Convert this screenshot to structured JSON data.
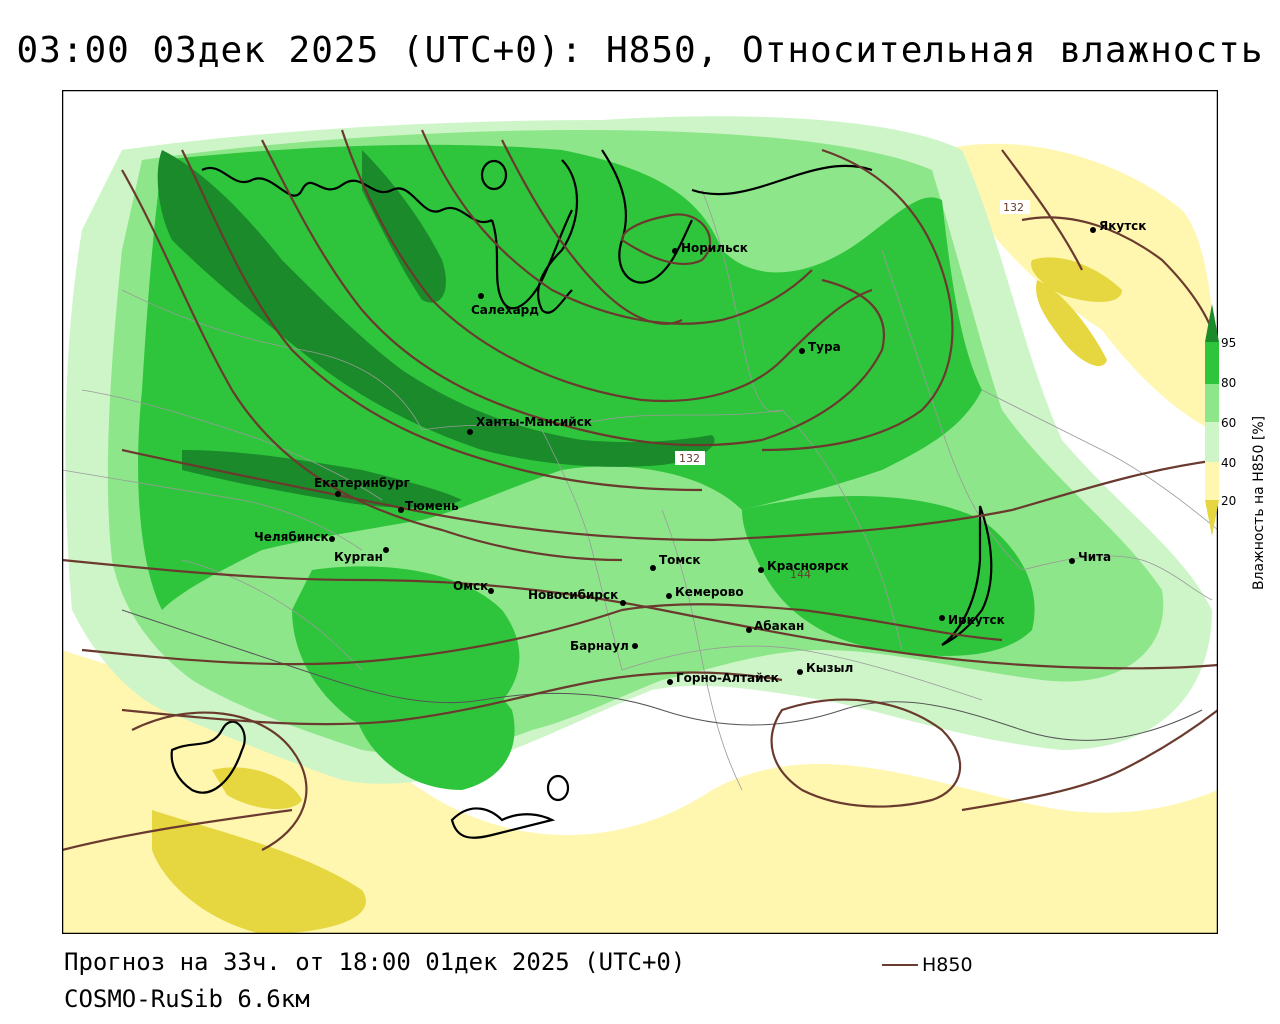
{
  "title": "03:00 03дек 2025 (UTC+0): H850, Относительная влажность",
  "footer": {
    "forecast": "Прогноз на 33ч. от 18:00 01дек 2025 (UTC+0)",
    "model": "COSMO-RuSib 6.6км",
    "line_legend": "H850"
  },
  "legend": {
    "axis_label": "Влажность на H850 [%]",
    "ticks": [
      "95",
      "80",
      "60",
      "40",
      "20"
    ],
    "colors": {
      "c95": "#1a8a2a",
      "c80": "#2ec53c",
      "c60": "#8ee68a",
      "c50": "#cdf5c8",
      "c40": "#ffffff",
      "c30": "#fff7b0",
      "c20": "#e6d640"
    }
  },
  "isoline_labels": [
    "132",
    "132",
    "144"
  ],
  "isoline_color": "#6b3a2e",
  "cities": [
    {
      "name": "Якутск"
    },
    {
      "name": "Норильск"
    },
    {
      "name": "Салехард"
    },
    {
      "name": "Тура"
    },
    {
      "name": "Ханты-Мансийск"
    },
    {
      "name": "Екатеринбург"
    },
    {
      "name": "Тюмень"
    },
    {
      "name": "Челябинск"
    },
    {
      "name": "Курган"
    },
    {
      "name": "Омск"
    },
    {
      "name": "Новосибирск"
    },
    {
      "name": "Томск"
    },
    {
      "name": "Кемерово"
    },
    {
      "name": "Красноярск"
    },
    {
      "name": "Барнаул"
    },
    {
      "name": "Абакан"
    },
    {
      "name": "Горно-Алтайск"
    },
    {
      "name": "Кызыл"
    },
    {
      "name": "Иркутск"
    },
    {
      "name": "Чита"
    }
  ]
}
